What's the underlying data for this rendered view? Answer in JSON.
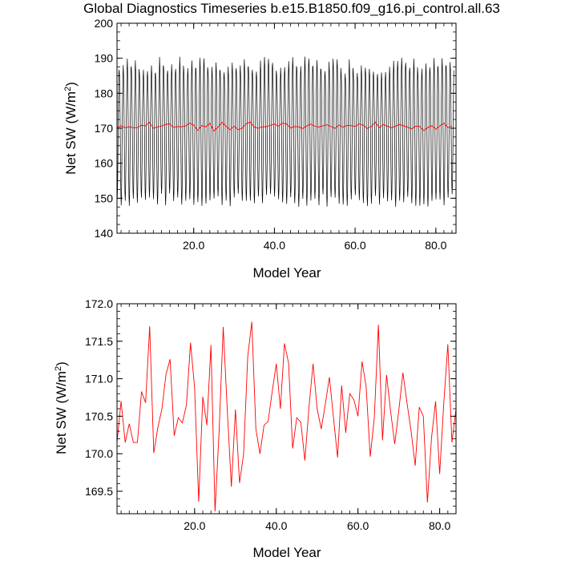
{
  "title": "Global Diagnostics Timeseries b.e15.B1850.f09_g16.pi_control.all.63",
  "chart_data": [
    {
      "type": "line",
      "xlabel": "Model Year",
      "ylabel_main": "Net SW (W/m",
      "ylabel_sup": "2",
      "ylabel_end": ")",
      "xlim": [
        1,
        85
      ],
      "ylim": [
        140,
        200
      ],
      "xticks": [
        20.0,
        40.0,
        60.0,
        80.0
      ],
      "xtick_labels": [
        "20.0",
        "40.0",
        "60.0",
        "80.0"
      ],
      "yticks": [
        140,
        150,
        160,
        170,
        180,
        190,
        200
      ],
      "ytick_labels": [
        "140",
        "150",
        "160",
        "170",
        "180",
        "190",
        "200"
      ],
      "monthly_series": {
        "color": "#000000",
        "note_amplitude_min": [
          147.5,
          151.5
        ],
        "note_amplitude_max": [
          185.5,
          190.5
        ]
      },
      "annual_series": {
        "color": "#ff0000"
      }
    },
    {
      "type": "line",
      "xlabel": "Model Year",
      "ylabel_main": "Net SW (W/m",
      "ylabel_sup": "2",
      "ylabel_end": ")",
      "xlim": [
        1,
        84
      ],
      "ylim": [
        169.2,
        172.0
      ],
      "xticks": [
        20.0,
        40.0,
        60.0,
        80.0
      ],
      "xtick_labels": [
        "20.0",
        "40.0",
        "60.0",
        "80.0"
      ],
      "yticks": [
        169.5,
        170.0,
        170.5,
        171.0,
        171.5,
        172.0
      ],
      "ytick_labels": [
        "169.5",
        "170.0",
        "170.5",
        "171.0",
        "171.5",
        "172.0"
      ],
      "series": [
        {
          "color": "#ff0000",
          "x": [
            1,
            2,
            3,
            4,
            5,
            6,
            7,
            8,
            9,
            10,
            11,
            12,
            13,
            14,
            15,
            16,
            17,
            18,
            19,
            20,
            21,
            22,
            23,
            24,
            25,
            26,
            27,
            28,
            29,
            30,
            31,
            32,
            33,
            34,
            35,
            36,
            37,
            38,
            39,
            40,
            41,
            42,
            43,
            44,
            45,
            46,
            47,
            48,
            49,
            50,
            51,
            52,
            53,
            54,
            55,
            56,
            57,
            58,
            59,
            60,
            61,
            62,
            63,
            64,
            65,
            66,
            67,
            68,
            69,
            70,
            71,
            72,
            73,
            74,
            75,
            76,
            77,
            78,
            79,
            80,
            81,
            82,
            83,
            84
          ],
          "values": [
            170.15,
            170.7,
            170.15,
            170.4,
            170.15,
            170.15,
            170.83,
            170.68,
            171.7,
            170.01,
            170.35,
            170.6,
            171.06,
            171.26,
            170.24,
            170.48,
            170.41,
            170.65,
            171.48,
            170.88,
            169.36,
            170.76,
            170.38,
            171.45,
            169.23,
            170.3,
            171.69,
            170.58,
            169.56,
            170.59,
            169.61,
            170.0,
            171.29,
            171.76,
            170.33,
            170.0,
            170.38,
            170.43,
            170.83,
            171.2,
            170.6,
            171.47,
            171.21,
            170.07,
            170.48,
            170.42,
            169.91,
            170.62,
            171.2,
            170.6,
            170.33,
            170.66,
            171.02,
            170.48,
            169.95,
            170.91,
            170.28,
            170.8,
            170.72,
            170.5,
            171.23,
            170.89,
            169.96,
            170.48,
            171.72,
            170.18,
            171.05,
            170.56,
            170.13,
            170.58,
            171.08,
            170.68,
            170.3,
            169.84,
            170.62,
            170.5,
            169.35,
            170.21,
            170.7,
            169.73,
            170.67,
            171.46,
            170.15,
            170.6
          ]
        }
      ]
    }
  ]
}
